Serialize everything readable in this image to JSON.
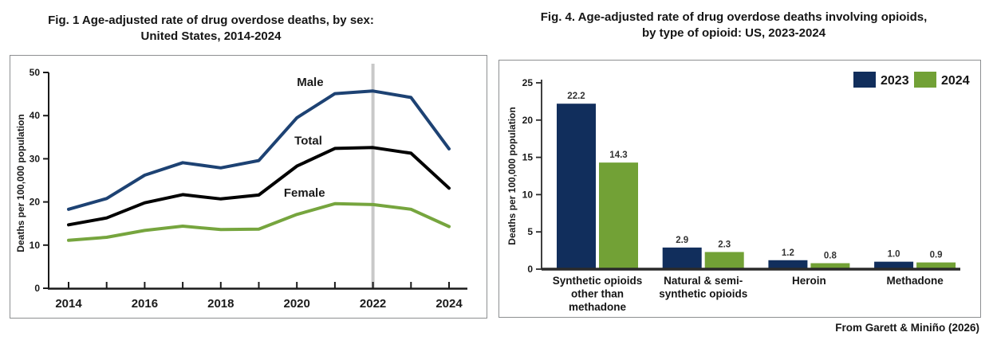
{
  "figures": {
    "fig1": {
      "title_line1": "Fig. 1 Age-adjusted rate of drug overdose deaths, by sex:",
      "title_line2": "United States, 2014-2024"
    },
    "fig4": {
      "title_line1": "Fig. 4. Age-adjusted rate of drug overdose deaths involving opioids,",
      "title_line2": "by type of opioid: US, 2023-2024",
      "footer": "From Garett & Miniño (2026)"
    }
  },
  "chart_data": [
    {
      "type": "line",
      "title": "Fig. 1 Age-adjusted rate of drug overdose deaths, by sex: United States, 2014-2024",
      "ylabel": "Deaths per 100,000 population",
      "x": [
        2014,
        2015,
        2016,
        2017,
        2018,
        2019,
        2020,
        2021,
        2022,
        2023,
        2024
      ],
      "series": [
        {
          "name": "Male",
          "color": "#1d4273",
          "values": [
            18.3,
            20.8,
            26.2,
            29.1,
            27.9,
            29.6,
            39.5,
            45.1,
            45.7,
            44.2,
            32.3
          ]
        },
        {
          "name": "Total",
          "color": "#000000",
          "values": [
            14.7,
            16.3,
            19.8,
            21.7,
            20.7,
            21.6,
            28.3,
            32.4,
            32.6,
            31.3,
            23.2
          ]
        },
        {
          "name": "Female",
          "color": "#76a53e",
          "values": [
            11.1,
            11.8,
            13.4,
            14.4,
            13.6,
            13.7,
            17.1,
            19.6,
            19.4,
            18.3,
            14.3
          ]
        }
      ],
      "ylim": [
        0,
        50
      ],
      "yticks": [
        0,
        10,
        20,
        30,
        40,
        50
      ],
      "xtick_labels": [
        2014,
        2016,
        2018,
        2020,
        2022,
        2024
      ],
      "grid": false,
      "legend_position": "inline-series-labels",
      "reference_line": {
        "x": 2022,
        "color": "#c9c9c9"
      },
      "series_labels": [
        {
          "text": "Male",
          "x": 2020.35,
          "y": 46.9
        },
        {
          "text": "Total",
          "x": 2020.3,
          "y": 33.3
        },
        {
          "text": "Female",
          "x": 2020.2,
          "y": 21.2
        }
      ]
    },
    {
      "type": "bar",
      "title": "Fig. 4. Age-adjusted rate of drug overdose deaths involving opioids, by type of opioid: US, 2023-2024",
      "ylabel": "Deaths per 100,000 population",
      "categories": [
        [
          "Synthetic opioids",
          "other than",
          "methadone"
        ],
        [
          "Natural & semi-",
          "synthetic opioids"
        ],
        [
          "Heroin"
        ],
        [
          "Methadone"
        ]
      ],
      "series": [
        {
          "name": "2023",
          "color": "#112e5c",
          "values": [
            22.2,
            2.9,
            1.2,
            1.0
          ]
        },
        {
          "name": "2024",
          "color": "#72a136",
          "values": [
            14.3,
            2.3,
            0.8,
            0.9
          ]
        }
      ],
      "ylim": [
        0,
        25
      ],
      "yticks": [
        0,
        5,
        10,
        15,
        20,
        25
      ],
      "grid": false,
      "legend_position": "top-right"
    }
  ]
}
